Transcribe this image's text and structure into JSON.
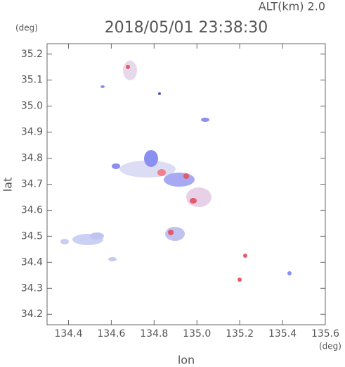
{
  "chart_data": {
    "type": "map",
    "title": "2018/05/01 23:38:30",
    "subtitle": "ALT(km) 2.0",
    "x_label": "lon",
    "x_unit": "(deg)",
    "y_label": "lat",
    "y_unit": "(deg)",
    "xlim": [
      134.3,
      135.6
    ],
    "xticks": [
      134.4,
      134.6,
      134.8,
      {
        "value": 135,
        "label": "135.0"
      },
      135.2,
      135.4,
      135.6
    ],
    "ylim": [
      34.16,
      35.24
    ],
    "yticks": [
      34.2,
      34.3,
      34.4,
      34.5,
      34.6,
      34.7,
      34.8,
      34.9,
      {
        "value": 35,
        "label": "35.0"
      },
      35.1,
      35.2
    ]
  }
}
